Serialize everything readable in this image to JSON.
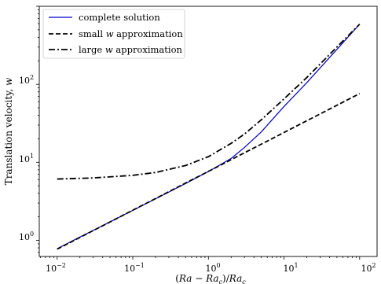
{
  "chart_data": {
    "type": "line",
    "xlabel": "(Ra − Ra_c)/Ra_c",
    "xlabel_parts": {
      "open": "(",
      "ra1": "Ra",
      "minus": " − ",
      "ra2": "Ra",
      "sub": "c",
      "close": ")/",
      "ra3": "Ra",
      "sub2": "c"
    },
    "ylabel": "Translation velocity, w",
    "ylabel_parts": {
      "text": "Translation velocity, ",
      "var": "w"
    },
    "xscale": "log",
    "yscale": "log",
    "xlim": [
      0.0058,
      170
    ],
    "ylim": [
      0.62,
      1000
    ],
    "grid": false,
    "legend_position": "top-left",
    "x_ticks": [
      {
        "base": "10",
        "exp": "−2",
        "value": 0.01
      },
      {
        "base": "10",
        "exp": "−1",
        "value": 0.1
      },
      {
        "base": "10",
        "exp": "0",
        "value": 1
      },
      {
        "base": "10",
        "exp": "1",
        "value": 10
      },
      {
        "base": "10",
        "exp": "2",
        "value": 100
      }
    ],
    "y_ticks": [
      {
        "base": "10",
        "exp": "0",
        "value": 1
      },
      {
        "base": "10",
        "exp": "1",
        "value": 10
      },
      {
        "base": "10",
        "exp": "2",
        "value": 100
      }
    ],
    "series": [
      {
        "name": "complete solution",
        "legend_parts": {
          "pre": "complete solution",
          "var": "",
          "post": ""
        },
        "color": "#0000cc",
        "dash": "solid",
        "x": [
          0.01,
          0.02,
          0.05,
          0.1,
          0.2,
          0.5,
          1,
          2,
          3,
          5,
          10,
          20,
          50,
          100
        ],
        "y": [
          0.78,
          1.1,
          1.72,
          2.42,
          3.4,
          5.35,
          7.6,
          11.2,
          15.5,
          24.5,
          52,
          105,
          280,
          590
        ]
      },
      {
        "name": "small w approximation",
        "legend_parts": {
          "pre": "small ",
          "var": "w",
          "post": " approximation"
        },
        "color": "#000000",
        "dash": "dashed",
        "x": [
          0.01,
          100
        ],
        "y": [
          0.77,
          76
        ]
      },
      {
        "name": "large w approximation",
        "legend_parts": {
          "pre": "large ",
          "var": "w",
          "post": " approximation"
        },
        "color": "#000000",
        "dash": "dashdot",
        "x": [
          0.01,
          0.03,
          0.1,
          0.2,
          0.5,
          1,
          2,
          3,
          5,
          10,
          20,
          50,
          100
        ],
        "y": [
          6.1,
          6.3,
          6.8,
          7.4,
          9.1,
          11.8,
          17.5,
          23,
          35,
          65,
          122,
          300,
          590
        ]
      }
    ]
  }
}
